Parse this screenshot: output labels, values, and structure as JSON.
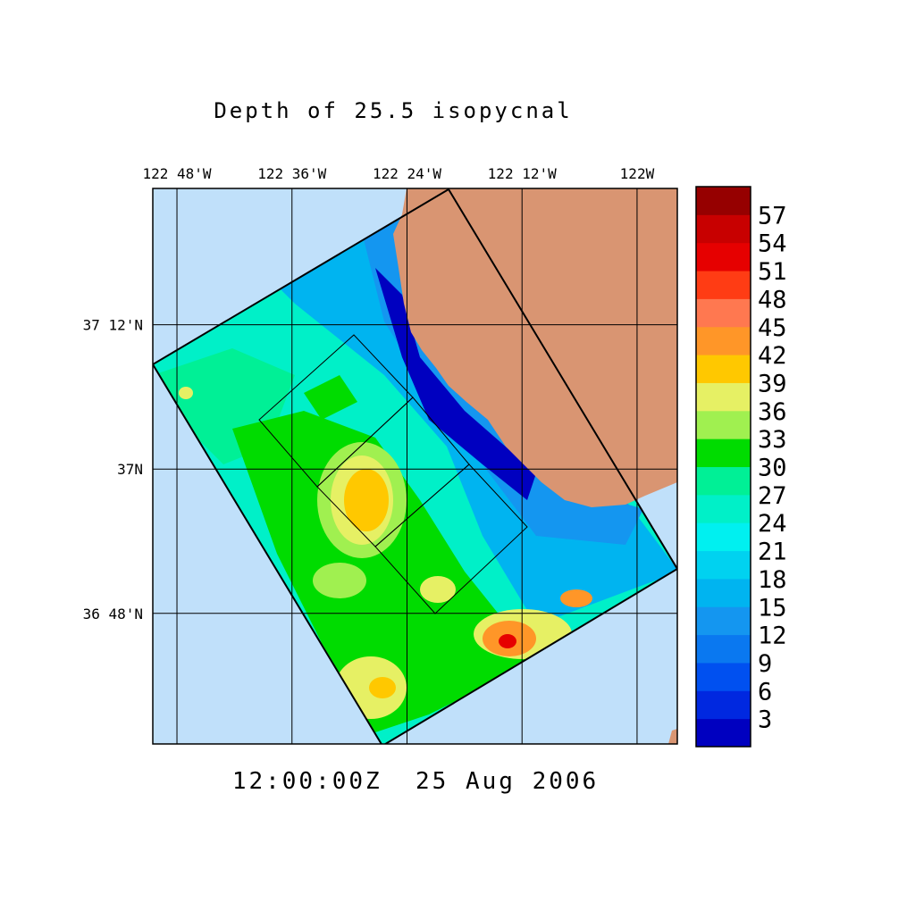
{
  "map": {
    "title": "Depth of 25.5 isopycnal",
    "timestamp": "12:00:00Z  25 Aug 2006",
    "xlim": [
      -122.842,
      -121.93
    ],
    "ylim": [
      36.619,
      37.389
    ],
    "xticks": [
      {
        "value": -122.8,
        "label": "122 48'W"
      },
      {
        "value": -122.6,
        "label": "122 36'W"
      },
      {
        "value": -122.4,
        "label": "122 24'W"
      },
      {
        "value": -122.2,
        "label": "122 12'W"
      },
      {
        "value": -122,
        "label": "122W"
      }
    ],
    "yticks": [
      {
        "value": 37.2,
        "label": "37 12'N"
      },
      {
        "value": 37,
        "label": "37N"
      },
      {
        "value": 36.8,
        "label": "36 48'N"
      }
    ],
    "colorbar": {
      "ticks": [
        3,
        6,
        9,
        12,
        15,
        18,
        21,
        24,
        27,
        30,
        33,
        36,
        39,
        42,
        45,
        48,
        51,
        54,
        57
      ],
      "colors": [
        "#0000c0",
        "#0028e0",
        "#0050f0",
        "#0a78f0",
        "#1496f0",
        "#00b4f0",
        "#00d2f0",
        "#00f0f0",
        "#00f0c8",
        "#00f096",
        "#00dc00",
        "#a0f050",
        "#e6f064",
        "#ffc800",
        "#ff9628",
        "#ff7850",
        "#ff3c14",
        "#e60000",
        "#c80000",
        "#960000"
      ]
    }
  }
}
